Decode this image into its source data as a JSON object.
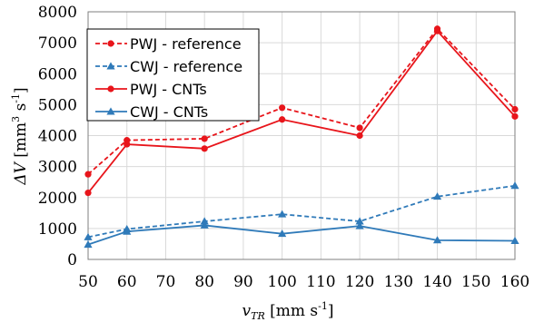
{
  "chart_data": {
    "type": "line",
    "x": [
      50,
      60,
      80,
      100,
      120,
      140,
      160
    ],
    "x_ticks": [
      50,
      60,
      70,
      80,
      90,
      100,
      110,
      120,
      130,
      140,
      150,
      160
    ],
    "y_ticks": [
      0,
      1000,
      2000,
      3000,
      4000,
      5000,
      6000,
      7000,
      8000
    ],
    "xlim": [
      50,
      160
    ],
    "ylim": [
      0,
      8000
    ],
    "xlabel": {
      "symbol": "v",
      "subscript": "TR",
      "unit_pre": " [mm s",
      "unit_sup": "-1",
      "unit_post": "]"
    },
    "ylabel": {
      "symbol": "ΔV",
      "unit_pre": " [mm",
      "unit_sup1": "3",
      "unit_mid": " s",
      "unit_sup2": "-1",
      "unit_post": "]"
    },
    "grid": "vertical and horizontal",
    "legend_position": "top-left",
    "series": [
      {
        "name": "PWJ - reference",
        "color": "#e8151b",
        "dash": "dashed",
        "marker": "circle",
        "values": [
          2750,
          3850,
          3900,
          4900,
          4250,
          7450,
          4850
        ]
      },
      {
        "name": "CWJ - reference",
        "color": "#2f7ab9",
        "dash": "dashed",
        "marker": "triangle",
        "values": [
          720,
          980,
          1230,
          1460,
          1230,
          2030,
          2380
        ]
      },
      {
        "name": "PWJ - CNTs",
        "color": "#e8151b",
        "dash": "solid",
        "marker": "circle",
        "values": [
          2150,
          3720,
          3580,
          4520,
          4000,
          7380,
          4620
        ]
      },
      {
        "name": "CWJ - CNTs",
        "color": "#2f7ab9",
        "dash": "solid",
        "marker": "triangle",
        "values": [
          480,
          900,
          1100,
          830,
          1080,
          620,
          600
        ]
      }
    ]
  }
}
